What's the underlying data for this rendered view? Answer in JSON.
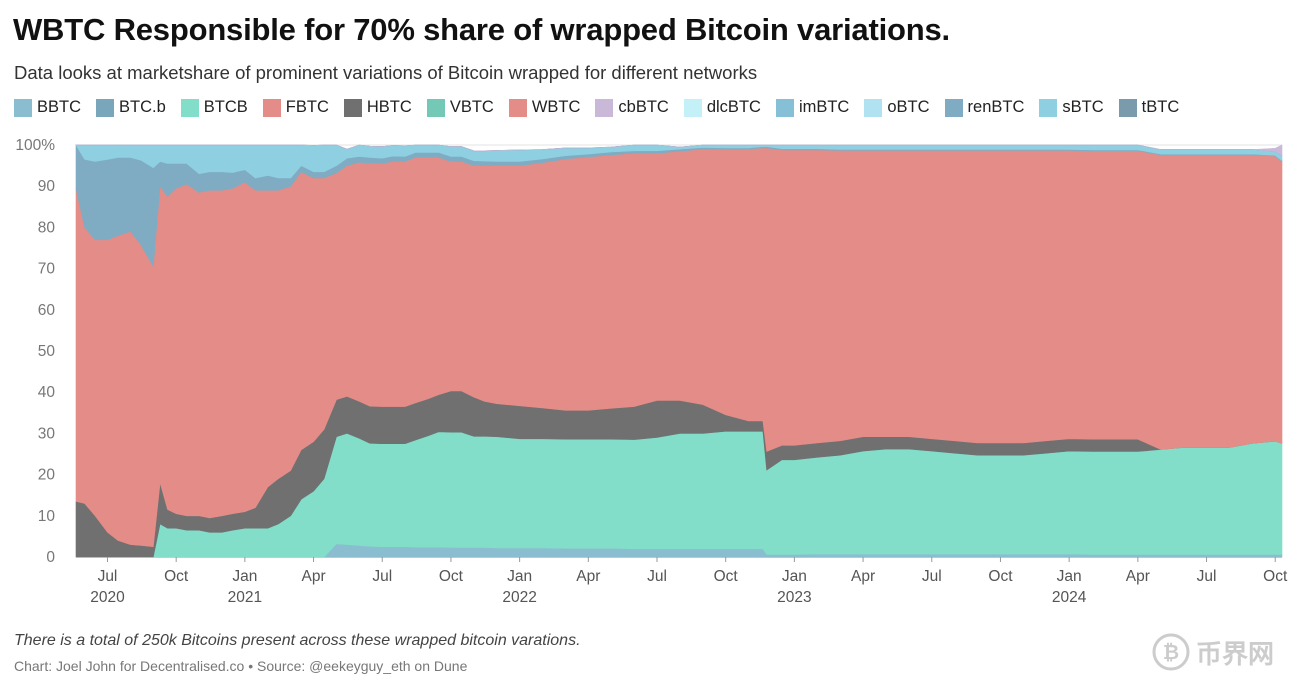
{
  "title": "WBTC Responsible for 70% share of wrapped Bitcoin variations.",
  "subtitle": "Data looks at marketshare of prominent variations of Bitcoin wrapped for different networks",
  "footnote": "There is a total of 250k Bitcoins present across these wrapped bitcoin varations.",
  "credit": "Chart: Joel John for Decentralised.co • Source: @eekeyguy_eth on Dune",
  "watermark": {
    "icon": "bitcoin-coin-icon",
    "text": "币界网"
  },
  "chart_data": {
    "type": "area",
    "stacked": true,
    "percent": true,
    "x_unit": "month",
    "ylim": [
      0,
      100
    ],
    "y_ticks": [
      0,
      10,
      20,
      30,
      40,
      50,
      60,
      70,
      80,
      90,
      100
    ],
    "y_tick_labels": [
      "0",
      "10",
      "20",
      "30",
      "40",
      "50",
      "60",
      "70",
      "80",
      "90",
      "100%"
    ],
    "x_ticks": [
      {
        "date": "2020-07",
        "label": "Jul",
        "year": "2020"
      },
      {
        "date": "2020-10",
        "label": "Oct",
        "year": ""
      },
      {
        "date": "2021-01",
        "label": "Jan",
        "year": "2021"
      },
      {
        "date": "2021-04",
        "label": "Apr",
        "year": ""
      },
      {
        "date": "2021-07",
        "label": "Jul",
        "year": ""
      },
      {
        "date": "2021-10",
        "label": "Oct",
        "year": ""
      },
      {
        "date": "2022-01",
        "label": "Jan",
        "year": "2022"
      },
      {
        "date": "2022-04",
        "label": "Apr",
        "year": ""
      },
      {
        "date": "2022-07",
        "label": "Jul",
        "year": ""
      },
      {
        "date": "2022-10",
        "label": "Oct",
        "year": ""
      },
      {
        "date": "2023-01",
        "label": "Jan",
        "year": "2023"
      },
      {
        "date": "2023-04",
        "label": "Apr",
        "year": ""
      },
      {
        "date": "2023-07",
        "label": "Jul",
        "year": ""
      },
      {
        "date": "2023-10",
        "label": "Oct",
        "year": ""
      },
      {
        "date": "2024-01",
        "label": "Jan",
        "year": "2024"
      },
      {
        "date": "2024-04",
        "label": "Apr",
        "year": ""
      },
      {
        "date": "2024-07",
        "label": "Jul",
        "year": ""
      },
      {
        "date": "2024-10",
        "label": "Oct",
        "year": ""
      }
    ],
    "legend": [
      {
        "name": "BBTC",
        "color": "#8bbdd0"
      },
      {
        "name": "BTC.b",
        "color": "#7aa6bb"
      },
      {
        "name": "BTCB",
        "color": "#82ddc9"
      },
      {
        "name": "FBTC",
        "color": "#e48c88"
      },
      {
        "name": "HBTC",
        "color": "#707070"
      },
      {
        "name": "VBTC",
        "color": "#74c9b6"
      },
      {
        "name": "WBTC",
        "color": "#e48c88"
      },
      {
        "name": "cbBTC",
        "color": "#c9b8d8"
      },
      {
        "name": "dlcBTC",
        "color": "#c4f0f8"
      },
      {
        "name": "imBTC",
        "color": "#86c0d6"
      },
      {
        "name": "oBTC",
        "color": "#b0e2f2"
      },
      {
        "name": "renBTC",
        "color": "#7facc2"
      },
      {
        "name": "sBTC",
        "color": "#8ecfe1"
      },
      {
        "name": "tBTC",
        "color": "#7a9bab"
      }
    ],
    "x": [
      "2020-05-20",
      "2020-06-01",
      "2020-06-15",
      "2020-07-01",
      "2020-07-15",
      "2020-08-01",
      "2020-08-15",
      "2020-09-01",
      "2020-09-10",
      "2020-09-20",
      "2020-10-01",
      "2020-10-15",
      "2020-11-01",
      "2020-11-15",
      "2020-12-01",
      "2020-12-15",
      "2021-01-01",
      "2021-01-15",
      "2021-02-01",
      "2021-02-15",
      "2021-03-01",
      "2021-03-15",
      "2021-04-01",
      "2021-04-15",
      "2021-05-01",
      "2021-05-15",
      "2021-06-01",
      "2021-06-15",
      "2021-07-01",
      "2021-07-15",
      "2021-08-01",
      "2021-08-15",
      "2021-09-01",
      "2021-09-15",
      "2021-10-01",
      "2021-10-15",
      "2021-11-01",
      "2021-11-15",
      "2021-12-01",
      "2022-01-01",
      "2022-02-01",
      "2022-03-01",
      "2022-04-01",
      "2022-05-01",
      "2022-06-01",
      "2022-07-01",
      "2022-08-01",
      "2022-09-01",
      "2022-10-01",
      "2022-11-01",
      "2022-11-20",
      "2022-11-25",
      "2022-12-15",
      "2023-01-01",
      "2023-02-01",
      "2023-03-01",
      "2023-04-01",
      "2023-05-01",
      "2023-06-01",
      "2023-07-01",
      "2023-08-01",
      "2023-09-01",
      "2023-10-01",
      "2023-11-01",
      "2023-12-01",
      "2024-01-01",
      "2024-02-01",
      "2024-03-01",
      "2024-04-01",
      "2024-05-01",
      "2024-06-01",
      "2024-07-01",
      "2024-08-01",
      "2024-09-01",
      "2024-10-01",
      "2024-10-10"
    ],
    "series": [
      {
        "name": "BBTC",
        "values": [
          0,
          0,
          0,
          0,
          0,
          0,
          0,
          0,
          0,
          0,
          0,
          0,
          0,
          0,
          0,
          0,
          0,
          0,
          0,
          0,
          0,
          0,
          0,
          0,
          3.2,
          3,
          2.8,
          2.6,
          2.5,
          2.5,
          2.5,
          2.4,
          2.4,
          2.4,
          2.3,
          2.3,
          2.3,
          2.3,
          2.2,
          2.2,
          2.2,
          2.1,
          2.1,
          2.1,
          2.0,
          2.0,
          2.0,
          2.0,
          2.0,
          2.0,
          2.0,
          0.6,
          0.6,
          0.6,
          0.7,
          0.7,
          0.7,
          0.7,
          0.7,
          0.7,
          0.7,
          0.7,
          0.7,
          0.7,
          0.7,
          0.7,
          0.6,
          0.6,
          0.6,
          0.6,
          0.6,
          0.6,
          0.6,
          0.6,
          0.6,
          0.6
        ]
      },
      {
        "name": "BTCB",
        "values": [
          0,
          0,
          0,
          0,
          0,
          0,
          0,
          0,
          8,
          7,
          7,
          6.5,
          6.5,
          6,
          6,
          6.5,
          7,
          7,
          7,
          8,
          10,
          14,
          16,
          19,
          26,
          27,
          26,
          25,
          25,
          25,
          25,
          26,
          27,
          28,
          28,
          28,
          27,
          27,
          27,
          26.5,
          26.5,
          26.5,
          26.5,
          26.5,
          26.5,
          27,
          28,
          28,
          28.5,
          28.5,
          28.5,
          20.5,
          23,
          23,
          23.5,
          24,
          25,
          25.5,
          25.5,
          25,
          24.5,
          24,
          24,
          24,
          24.5,
          25,
          25,
          25,
          25,
          25.5,
          26,
          26,
          26,
          27,
          27.5,
          27
        ]
      },
      {
        "name": "HBTC",
        "values": [
          13.5,
          13,
          10,
          6,
          4,
          3,
          2.8,
          2.5,
          10,
          4.5,
          3.5,
          3.5,
          3.5,
          3.5,
          4,
          4,
          4,
          5,
          10,
          11,
          11,
          12,
          12,
          12,
          9,
          9,
          9,
          9,
          9,
          9,
          9,
          9,
          9,
          9,
          10,
          10,
          9.5,
          8.5,
          8,
          8,
          7.5,
          7,
          7,
          7.5,
          8,
          9,
          8,
          7,
          4,
          2.5,
          2.5,
          4.5,
          3.5,
          3.5,
          3.5,
          3.5,
          3.5,
          3,
          3,
          3,
          3,
          3,
          3,
          3,
          3,
          3,
          3,
          3,
          3,
          0,
          0,
          0,
          0,
          0,
          0,
          0
        ]
      },
      {
        "name": "WBTC",
        "values": [
          76,
          67,
          67,
          71,
          74,
          76,
          73,
          68,
          72,
          76,
          79,
          80.5,
          78.5,
          79.5,
          79,
          79,
          80,
          77,
          72,
          70,
          69,
          67.5,
          64,
          61,
          55,
          56,
          58,
          59,
          59,
          59.5,
          59.5,
          59.6,
          58.6,
          57.6,
          55.7,
          55.7,
          56.2,
          57.2,
          57.8,
          58.3,
          59.5,
          61,
          61.5,
          61.5,
          61.5,
          60,
          60.5,
          62,
          64.5,
          66,
          66.3,
          73.7,
          71.7,
          71.7,
          71.1,
          70.5,
          69.5,
          69.5,
          69.5,
          70,
          70.5,
          71,
          71,
          71,
          70.5,
          70,
          70,
          70,
          70,
          71.5,
          71,
          71,
          71,
          70,
          69.2,
          68.4
        ]
      },
      {
        "name": "renBTC",
        "values": [
          10.5,
          16.5,
          19,
          19.5,
          19,
          18,
          20.5,
          24,
          6,
          8,
          6,
          5,
          4.5,
          4.5,
          4.5,
          3.8,
          3,
          3,
          3.6,
          3,
          2,
          1.5,
          1.5,
          1.5,
          1.8,
          1.8,
          1.4,
          1.4,
          1.3,
          1.3,
          1.2,
          1.2,
          1.2,
          1.2,
          1.2,
          1.2,
          1.2,
          1.1,
          1,
          1,
          0.9,
          0.8,
          0.7,
          0.7,
          0.6,
          0.6,
          0.5,
          0.4,
          0.3,
          0.3,
          0.3,
          0.3,
          0.3,
          0.3,
          0.3,
          0.2,
          0.2,
          0.2,
          0.2,
          0.2,
          0.2,
          0.2,
          0.2,
          0.2,
          0.2,
          0.2,
          0.2,
          0.2,
          0.2,
          0.2,
          0.2,
          0.2,
          0.2,
          0.2,
          0.2,
          0.2
        ]
      },
      {
        "name": "sBTC",
        "values": [
          0,
          3.5,
          4,
          3.5,
          3,
          3,
          3.7,
          5.5,
          4,
          4.5,
          4.5,
          4.5,
          7,
          6.5,
          6.5,
          6.7,
          6,
          8,
          7.4,
          8,
          8,
          5,
          6.4,
          6.5,
          5,
          2.2,
          2.8,
          2.7,
          2.8,
          2.6,
          2.6,
          2.4,
          2.4,
          2.4,
          2.4,
          2.4,
          2.4,
          2.5,
          2.7,
          2.8,
          2.3,
          1.9,
          1.5,
          1.2,
          1.4,
          1.4,
          0.5,
          0.6,
          0.7,
          0.7,
          0.4,
          0.4,
          0.9,
          0.9,
          0.9,
          1.1,
          1.1,
          1.1,
          1.1,
          1.1,
          1.1,
          1.1,
          1.1,
          1.1,
          1.1,
          1.1,
          1.2,
          1.2,
          1.2,
          1.1,
          1.1,
          1.1,
          1.1,
          1.1,
          1.0,
          1.2
        ]
      },
      {
        "name": "tBTC",
        "values": [
          0,
          0,
          0,
          0,
          0,
          0,
          0,
          0,
          0,
          0,
          0,
          0,
          0,
          0,
          0,
          0,
          0,
          0,
          0,
          0,
          0,
          0,
          0,
          0,
          0,
          0,
          0,
          0,
          0,
          0,
          0,
          0,
          0,
          0,
          0,
          0,
          0,
          0,
          0,
          0,
          0,
          0,
          0,
          0,
          0,
          0,
          0,
          0,
          0,
          0,
          0,
          0,
          0,
          0,
          0,
          0,
          0,
          0,
          0,
          0,
          0,
          0,
          0,
          0,
          0,
          0,
          0,
          0,
          0,
          0,
          0,
          0,
          0,
          0,
          0,
          0
        ]
      },
      {
        "name": "cbBTC",
        "values": [
          0,
          0,
          0,
          0,
          0,
          0,
          0,
          0,
          0,
          0,
          0,
          0,
          0,
          0,
          0,
          0,
          0,
          0,
          0,
          0,
          0,
          0,
          0,
          0,
          0,
          0,
          0,
          0,
          0,
          0,
          0,
          0,
          0,
          0,
          0,
          0,
          0,
          0,
          0,
          0,
          0,
          0,
          0,
          0,
          0,
          0,
          0,
          0,
          0,
          0,
          0,
          0,
          0,
          0,
          0,
          0,
          0,
          0,
          0,
          0,
          0,
          0,
          0,
          0,
          0,
          0,
          0,
          0,
          0,
          0,
          0,
          0,
          0,
          0,
          0.7,
          2.6
        ]
      }
    ]
  }
}
